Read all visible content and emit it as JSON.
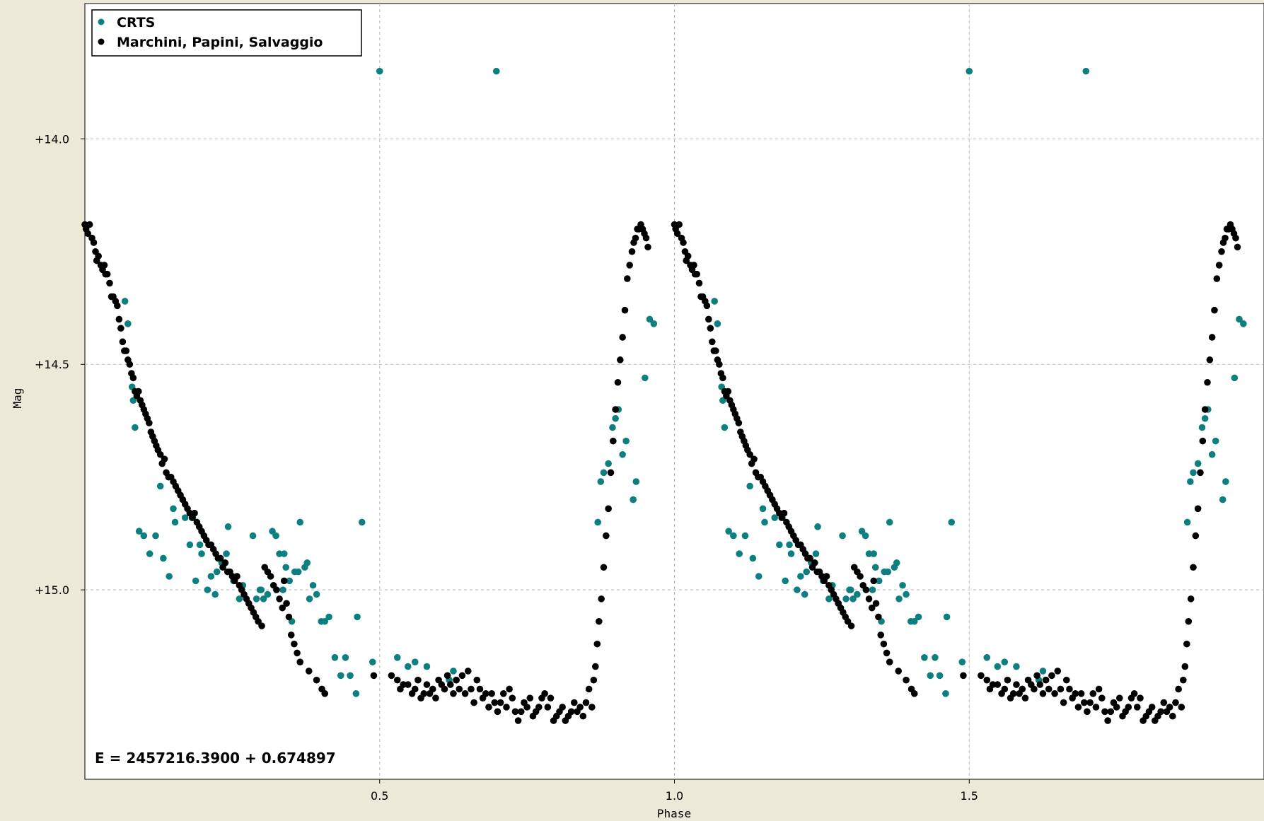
{
  "chart_data": {
    "type": "scatter",
    "xlabel": "Phase",
    "ylabel": "Mag",
    "xlim": [
      0.0,
      2.0
    ],
    "ylim": [
      13.7,
      15.42
    ],
    "y_inverted": true,
    "x_ticks": [
      "0.5",
      "1.0",
      "1.5"
    ],
    "y_ticks": [
      "+14.0",
      "+14.5",
      "+15.0"
    ],
    "grid": true,
    "legend_position": "top-left",
    "annotation": "E = 2457216.3900 + 0.674897",
    "period_repeat": 1.0,
    "colors": {
      "CRTS": "#0e7f80",
      "Marchini, Papini, Salvaggio": "#000000"
    },
    "series": [
      {
        "name": "CRTS",
        "points": [
          [
            0.068,
            14.36
          ],
          [
            0.073,
            14.41
          ],
          [
            0.08,
            14.55
          ],
          [
            0.082,
            14.58
          ],
          [
            0.085,
            14.64
          ],
          [
            0.092,
            14.87
          ],
          [
            0.1,
            14.88
          ],
          [
            0.11,
            14.92
          ],
          [
            0.12,
            14.88
          ],
          [
            0.128,
            14.77
          ],
          [
            0.133,
            14.93
          ],
          [
            0.143,
            14.97
          ],
          [
            0.15,
            14.82
          ],
          [
            0.153,
            14.85
          ],
          [
            0.17,
            14.84
          ],
          [
            0.178,
            14.9
          ],
          [
            0.183,
            14.84
          ],
          [
            0.188,
            14.98
          ],
          [
            0.195,
            14.9
          ],
          [
            0.198,
            14.92
          ],
          [
            0.208,
            15.0
          ],
          [
            0.214,
            14.97
          ],
          [
            0.221,
            15.01
          ],
          [
            0.224,
            14.96
          ],
          [
            0.232,
            14.94
          ],
          [
            0.24,
            14.92
          ],
          [
            0.243,
            14.86
          ],
          [
            0.252,
            14.98
          ],
          [
            0.262,
            15.02
          ],
          [
            0.268,
            14.99
          ],
          [
            0.278,
            15.03
          ],
          [
            0.285,
            14.88
          ],
          [
            0.291,
            15.02
          ],
          [
            0.297,
            15.0
          ],
          [
            0.299,
            15.0
          ],
          [
            0.303,
            15.02
          ],
          [
            0.31,
            15.01
          ],
          [
            0.318,
            14.87
          ],
          [
            0.324,
            14.88
          ],
          [
            0.33,
            14.92
          ],
          [
            0.336,
            15.0
          ],
          [
            0.338,
            14.92
          ],
          [
            0.341,
            14.95
          ],
          [
            0.347,
            14.98
          ],
          [
            0.351,
            15.07
          ],
          [
            0.356,
            14.96
          ],
          [
            0.362,
            14.96
          ],
          [
            0.365,
            14.85
          ],
          [
            0.373,
            14.95
          ],
          [
            0.377,
            14.94
          ],
          [
            0.381,
            15.02
          ],
          [
            0.387,
            14.99
          ],
          [
            0.393,
            15.01
          ],
          [
            0.401,
            15.07
          ],
          [
            0.407,
            15.07
          ],
          [
            0.414,
            15.06
          ],
          [
            0.424,
            15.15
          ],
          [
            0.434,
            15.19
          ],
          [
            0.442,
            15.15
          ],
          [
            0.45,
            15.19
          ],
          [
            0.46,
            15.23
          ],
          [
            0.462,
            15.06
          ],
          [
            0.47,
            14.85
          ],
          [
            0.488,
            15.16
          ],
          [
            0.5,
            13.85
          ],
          [
            0.53,
            15.15
          ],
          [
            0.548,
            15.17
          ],
          [
            0.56,
            15.16
          ],
          [
            0.58,
            15.17
          ],
          [
            0.618,
            15.2
          ],
          [
            0.625,
            15.18
          ],
          [
            0.63,
            15.2
          ],
          [
            0.698,
            13.85
          ],
          [
            0.87,
            14.85
          ],
          [
            0.875,
            14.76
          ],
          [
            0.88,
            14.74
          ],
          [
            0.888,
            14.72
          ],
          [
            0.895,
            14.64
          ],
          [
            0.9,
            14.62
          ],
          [
            0.905,
            14.6
          ],
          [
            0.912,
            14.7
          ],
          [
            0.918,
            14.67
          ],
          [
            0.93,
            14.8
          ],
          [
            0.935,
            14.76
          ],
          [
            0.95,
            14.53
          ],
          [
            0.958,
            14.4
          ],
          [
            0.965,
            14.41
          ]
        ]
      },
      {
        "name": "Marchini, Papini, Salvaggio",
        "points": [
          [
            0.0,
            14.19
          ],
          [
            0.002,
            14.2
          ],
          [
            0.005,
            14.21
          ],
          [
            0.008,
            14.19
          ],
          [
            0.012,
            14.22
          ],
          [
            0.015,
            14.23
          ],
          [
            0.018,
            14.25
          ],
          [
            0.02,
            14.27
          ],
          [
            0.023,
            14.26
          ],
          [
            0.027,
            14.28
          ],
          [
            0.03,
            14.29
          ],
          [
            0.033,
            14.28
          ],
          [
            0.035,
            14.3
          ],
          [
            0.038,
            14.3
          ],
          [
            0.042,
            14.32
          ],
          [
            0.045,
            14.35
          ],
          [
            0.048,
            14.35
          ],
          [
            0.052,
            14.36
          ],
          [
            0.055,
            14.37
          ],
          [
            0.058,
            14.4
          ],
          [
            0.061,
            14.42
          ],
          [
            0.064,
            14.45
          ],
          [
            0.067,
            14.47
          ],
          [
            0.07,
            14.47
          ],
          [
            0.073,
            14.49
          ],
          [
            0.076,
            14.5
          ],
          [
            0.079,
            14.52
          ],
          [
            0.082,
            14.53
          ],
          [
            0.085,
            14.56
          ],
          [
            0.088,
            14.57
          ],
          [
            0.091,
            14.56
          ],
          [
            0.094,
            14.58
          ],
          [
            0.097,
            14.59
          ],
          [
            0.1,
            14.6
          ],
          [
            0.103,
            14.61
          ],
          [
            0.106,
            14.62
          ],
          [
            0.109,
            14.63
          ],
          [
            0.112,
            14.65
          ],
          [
            0.115,
            14.66
          ],
          [
            0.118,
            14.67
          ],
          [
            0.121,
            14.68
          ],
          [
            0.124,
            14.69
          ],
          [
            0.128,
            14.7
          ],
          [
            0.131,
            14.72
          ],
          [
            0.135,
            14.71
          ],
          [
            0.138,
            14.74
          ],
          [
            0.142,
            14.75
          ],
          [
            0.146,
            14.75
          ],
          [
            0.15,
            14.76
          ],
          [
            0.154,
            14.77
          ],
          [
            0.158,
            14.78
          ],
          [
            0.162,
            14.79
          ],
          [
            0.166,
            14.8
          ],
          [
            0.17,
            14.81
          ],
          [
            0.174,
            14.82
          ],
          [
            0.178,
            14.83
          ],
          [
            0.182,
            14.84
          ],
          [
            0.186,
            14.83
          ],
          [
            0.19,
            14.85
          ],
          [
            0.194,
            14.86
          ],
          [
            0.198,
            14.87
          ],
          [
            0.202,
            14.88
          ],
          [
            0.206,
            14.89
          ],
          [
            0.21,
            14.9
          ],
          [
            0.214,
            14.9
          ],
          [
            0.218,
            14.91
          ],
          [
            0.222,
            14.92
          ],
          [
            0.226,
            14.93
          ],
          [
            0.23,
            14.93
          ],
          [
            0.234,
            14.95
          ],
          [
            0.238,
            14.94
          ],
          [
            0.242,
            14.96
          ],
          [
            0.246,
            14.96
          ],
          [
            0.25,
            14.97
          ],
          [
            0.254,
            14.98
          ],
          [
            0.258,
            14.97
          ],
          [
            0.262,
            14.99
          ],
          [
            0.266,
            15.0
          ],
          [
            0.27,
            15.01
          ],
          [
            0.274,
            15.02
          ],
          [
            0.278,
            15.03
          ],
          [
            0.282,
            15.04
          ],
          [
            0.286,
            15.05
          ],
          [
            0.29,
            15.06
          ],
          [
            0.294,
            15.07
          ],
          [
            0.3,
            15.08
          ],
          [
            0.305,
            14.95
          ],
          [
            0.31,
            14.96
          ],
          [
            0.315,
            14.97
          ],
          [
            0.32,
            14.99
          ],
          [
            0.325,
            15.0
          ],
          [
            0.33,
            15.02
          ],
          [
            0.335,
            15.04
          ],
          [
            0.338,
            14.98
          ],
          [
            0.342,
            15.03
          ],
          [
            0.346,
            15.06
          ],
          [
            0.35,
            15.1
          ],
          [
            0.355,
            15.12
          ],
          [
            0.36,
            15.14
          ],
          [
            0.365,
            15.16
          ],
          [
            0.38,
            15.18
          ],
          [
            0.393,
            15.2
          ],
          [
            0.402,
            15.22
          ],
          [
            0.407,
            15.23
          ],
          [
            0.49,
            15.19
          ],
          [
            0.52,
            15.19
          ],
          [
            0.53,
            15.2
          ],
          [
            0.535,
            15.22
          ],
          [
            0.54,
            15.21
          ],
          [
            0.548,
            15.21
          ],
          [
            0.555,
            15.23
          ],
          [
            0.56,
            15.22
          ],
          [
            0.565,
            15.2
          ],
          [
            0.57,
            15.24
          ],
          [
            0.575,
            15.23
          ],
          [
            0.58,
            15.21
          ],
          [
            0.585,
            15.23
          ],
          [
            0.59,
            15.22
          ],
          [
            0.595,
            15.24
          ],
          [
            0.6,
            15.2
          ],
          [
            0.605,
            15.21
          ],
          [
            0.61,
            15.22
          ],
          [
            0.615,
            15.19
          ],
          [
            0.62,
            15.21
          ],
          [
            0.625,
            15.23
          ],
          [
            0.63,
            15.2
          ],
          [
            0.635,
            15.22
          ],
          [
            0.64,
            15.19
          ],
          [
            0.645,
            15.23
          ],
          [
            0.65,
            15.18
          ],
          [
            0.655,
            15.22
          ],
          [
            0.66,
            15.25
          ],
          [
            0.665,
            15.2
          ],
          [
            0.67,
            15.22
          ],
          [
            0.675,
            15.24
          ],
          [
            0.68,
            15.23
          ],
          [
            0.685,
            15.26
          ],
          [
            0.69,
            15.23
          ],
          [
            0.695,
            15.25
          ],
          [
            0.7,
            15.27
          ],
          [
            0.705,
            15.25
          ],
          [
            0.71,
            15.23
          ],
          [
            0.715,
            15.26
          ],
          [
            0.72,
            15.22
          ],
          [
            0.725,
            15.24
          ],
          [
            0.73,
            15.27
          ],
          [
            0.735,
            15.29
          ],
          [
            0.74,
            15.27
          ],
          [
            0.745,
            15.25
          ],
          [
            0.75,
            15.26
          ],
          [
            0.755,
            15.24
          ],
          [
            0.76,
            15.28
          ],
          [
            0.765,
            15.27
          ],
          [
            0.77,
            15.26
          ],
          [
            0.775,
            15.24
          ],
          [
            0.78,
            15.23
          ],
          [
            0.785,
            15.26
          ],
          [
            0.79,
            15.24
          ],
          [
            0.795,
            15.29
          ],
          [
            0.8,
            15.28
          ],
          [
            0.805,
            15.27
          ],
          [
            0.81,
            15.26
          ],
          [
            0.815,
            15.29
          ],
          [
            0.82,
            15.28
          ],
          [
            0.825,
            15.27
          ],
          [
            0.83,
            15.25
          ],
          [
            0.835,
            15.27
          ],
          [
            0.84,
            15.26
          ],
          [
            0.845,
            15.28
          ],
          [
            0.85,
            15.25
          ],
          [
            0.855,
            15.22
          ],
          [
            0.86,
            15.26
          ],
          [
            0.863,
            15.2
          ],
          [
            0.866,
            15.17
          ],
          [
            0.869,
            15.12
          ],
          [
            0.872,
            15.07
          ],
          [
            0.876,
            15.02
          ],
          [
            0.88,
            14.95
          ],
          [
            0.884,
            14.88
          ],
          [
            0.888,
            14.82
          ],
          [
            0.892,
            14.74
          ],
          [
            0.896,
            14.67
          ],
          [
            0.9,
            14.6
          ],
          [
            0.904,
            14.54
          ],
          [
            0.908,
            14.49
          ],
          [
            0.912,
            14.44
          ],
          [
            0.916,
            14.38
          ],
          [
            0.92,
            14.31
          ],
          [
            0.924,
            14.28
          ],
          [
            0.928,
            14.25
          ],
          [
            0.931,
            14.23
          ],
          [
            0.934,
            14.22
          ],
          [
            0.937,
            14.2
          ],
          [
            0.94,
            14.2
          ],
          [
            0.943,
            14.19
          ],
          [
            0.946,
            14.2
          ],
          [
            0.949,
            14.21
          ],
          [
            0.952,
            14.22
          ],
          [
            0.955,
            14.24
          ]
        ]
      }
    ]
  }
}
